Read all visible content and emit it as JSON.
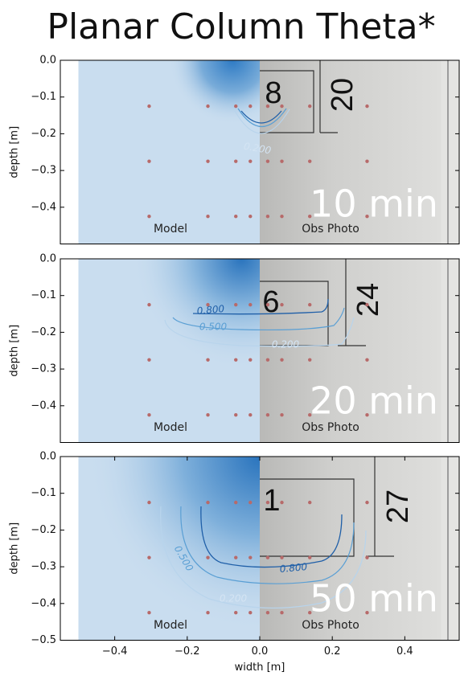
{
  "title": "Planar Column Theta*",
  "chart_data": [
    {
      "type": "scatter",
      "ylabel": "depth [m]",
      "xlim": [
        -0.55,
        0.55
      ],
      "ylim": [
        -0.5,
        0.0
      ],
      "yticks": [
        {
          "value": 0.0,
          "label": "0.0"
        },
        {
          "value": -0.1,
          "label": "−0.1"
        },
        {
          "value": -0.2,
          "label": "−0.2"
        },
        {
          "value": -0.3,
          "label": "−0.3"
        },
        {
          "value": -0.4,
          "label": "−0.4"
        }
      ],
      "color": "#b76a6a",
      "x": [
        -0.305,
        -0.143,
        -0.066,
        -0.026,
        0.022,
        0.061,
        0.138,
        0.296,
        -0.305,
        -0.143,
        -0.066,
        -0.026,
        0.022,
        0.061,
        0.138,
        0.296,
        -0.305,
        -0.143,
        -0.066,
        -0.026,
        0.022,
        0.061,
        0.138,
        0.296
      ],
      "y": [
        -0.125,
        -0.125,
        -0.125,
        -0.125,
        -0.125,
        -0.125,
        -0.125,
        -0.125,
        -0.275,
        -0.275,
        -0.275,
        -0.275,
        -0.275,
        -0.275,
        -0.275,
        -0.275,
        -0.425,
        -0.425,
        -0.425,
        -0.425,
        -0.425,
        -0.425,
        -0.425,
        -0.425
      ],
      "annotations": {
        "left": "Model",
        "right": "Obs Photo",
        "time": "10 min"
      },
      "contour_labels": [
        "0.200"
      ],
      "photo_labels": [
        "8",
        "20"
      ]
    },
    {
      "type": "scatter",
      "ylabel": "depth [m]",
      "xlim": [
        -0.55,
        0.55
      ],
      "ylim": [
        -0.5,
        0.0
      ],
      "yticks": [
        {
          "value": 0.0,
          "label": "0.0"
        },
        {
          "value": -0.1,
          "label": "−0.1"
        },
        {
          "value": -0.2,
          "label": "−0.2"
        },
        {
          "value": -0.3,
          "label": "−0.3"
        },
        {
          "value": -0.4,
          "label": "−0.4"
        }
      ],
      "color": "#b76a6a",
      "x": [
        -0.305,
        -0.143,
        -0.066,
        -0.026,
        0.022,
        0.061,
        0.138,
        0.296,
        -0.305,
        -0.143,
        -0.066,
        -0.026,
        0.022,
        0.061,
        0.138,
        0.296,
        -0.305,
        -0.143,
        -0.066,
        -0.026,
        0.022,
        0.061,
        0.138,
        0.296
      ],
      "y": [
        -0.125,
        -0.125,
        -0.125,
        -0.125,
        -0.125,
        -0.125,
        -0.125,
        -0.125,
        -0.275,
        -0.275,
        -0.275,
        -0.275,
        -0.275,
        -0.275,
        -0.275,
        -0.275,
        -0.425,
        -0.425,
        -0.425,
        -0.425,
        -0.425,
        -0.425,
        -0.425,
        -0.425
      ],
      "annotations": {
        "left": "Model",
        "right": "Obs Photo",
        "time": "20 min"
      },
      "contour_labels": [
        "0.800",
        "0.500",
        "0.200"
      ],
      "photo_labels": [
        "6",
        "24"
      ]
    },
    {
      "type": "scatter",
      "ylabel": "depth [m]",
      "xlabel": "width [m]",
      "xlim": [
        -0.55,
        0.55
      ],
      "ylim": [
        -0.5,
        0.0
      ],
      "yticks": [
        {
          "value": 0.0,
          "label": "0.0"
        },
        {
          "value": -0.1,
          "label": "−0.1"
        },
        {
          "value": -0.2,
          "label": "−0.2"
        },
        {
          "value": -0.3,
          "label": "−0.3"
        },
        {
          "value": -0.4,
          "label": "−0.4"
        },
        {
          "value": -0.5,
          "label": "−0.5"
        }
      ],
      "xticks": [
        {
          "value": -0.4,
          "label": "−0.4"
        },
        {
          "value": -0.2,
          "label": "−0.2"
        },
        {
          "value": 0.0,
          "label": "0.0"
        },
        {
          "value": 0.2,
          "label": "0.2"
        },
        {
          "value": 0.4,
          "label": "0.4"
        }
      ],
      "color": "#b76a6a",
      "x": [
        -0.305,
        -0.143,
        -0.066,
        -0.026,
        0.022,
        0.061,
        0.138,
        0.296,
        -0.305,
        -0.143,
        -0.066,
        -0.026,
        0.022,
        0.061,
        0.138,
        0.296,
        -0.305,
        -0.143,
        -0.066,
        -0.026,
        0.022,
        0.061,
        0.138,
        0.296
      ],
      "y": [
        -0.125,
        -0.125,
        -0.125,
        -0.125,
        -0.125,
        -0.125,
        -0.125,
        -0.125,
        -0.275,
        -0.275,
        -0.275,
        -0.275,
        -0.275,
        -0.275,
        -0.275,
        -0.275,
        -0.425,
        -0.425,
        -0.425,
        -0.425,
        -0.425,
        -0.425,
        -0.425,
        -0.425
      ],
      "annotations": {
        "left": "Model",
        "right": "Obs Photo",
        "time": "50 min"
      },
      "contour_labels": [
        "0.800",
        "0.500",
        "0.200"
      ],
      "photo_labels": [
        "1",
        "27"
      ]
    }
  ]
}
